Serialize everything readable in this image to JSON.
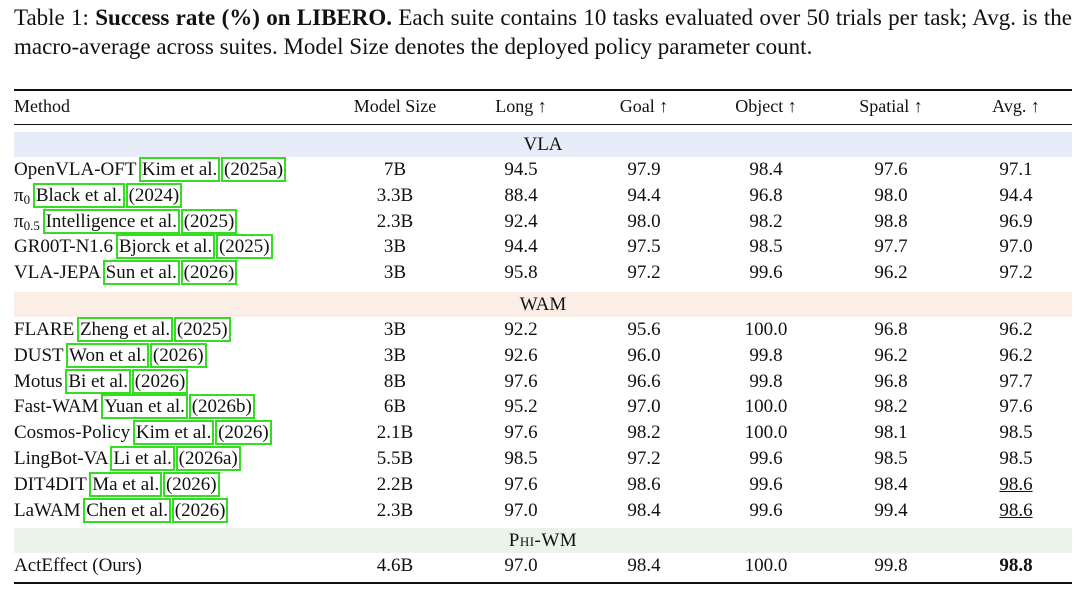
{
  "caption": {
    "label": "Table 1:",
    "title": "Success rate (%) on LIBERO.",
    "text": "Each suite contains 10 tasks evaluated over 50 trials per task; Avg. is the macro-average across suites. Model Size denotes the deployed policy parameter count."
  },
  "columns": [
    "Method",
    "Model Size",
    "Long ↑",
    "Goal ↑",
    "Object ↑",
    "Spatial ↑",
    "Avg. ↑"
  ],
  "groups": [
    {
      "name": "VLA",
      "band_color": "#e6edf8",
      "rows": [
        {
          "method": "OpenVLA-OFT",
          "sub": "",
          "cite_author": "Kim et al.",
          "cite_year": "(2025a)",
          "size": "7B",
          "long": "94.5",
          "goal": "97.9",
          "object": "98.4",
          "spatial": "97.6",
          "avg": "97.1"
        },
        {
          "method": "π",
          "sub": "0",
          "cite_author": "Black et al.",
          "cite_year": "(2024)",
          "size": "3.3B",
          "long": "88.4",
          "goal": "94.4",
          "object": "96.8",
          "spatial": "98.0",
          "avg": "94.4"
        },
        {
          "method": "π",
          "sub": "0.5",
          "cite_author": "Intelligence et al.",
          "cite_year": "(2025)",
          "size": "2.3B",
          "long": "92.4",
          "goal": "98.0",
          "object": "98.2",
          "spatial": "98.8",
          "avg": "96.9"
        },
        {
          "method": "GR00T-N1.6",
          "sub": "",
          "cite_author": "Bjorck et al.",
          "cite_year": "(2025)",
          "size": "3B",
          "long": "94.4",
          "goal": "97.5",
          "object": "98.5",
          "spatial": "97.7",
          "avg": "97.0"
        },
        {
          "method": "VLA-JEPA",
          "sub": "",
          "cite_author": "Sun et al.",
          "cite_year": "(2026)",
          "size": "3B",
          "long": "95.8",
          "goal": "97.2",
          "object": "99.6",
          "spatial": "96.2",
          "avg": "97.2"
        }
      ]
    },
    {
      "name": "WAM",
      "band_color": "#fbeee6",
      "rows": [
        {
          "method": "FLARE",
          "sub": "",
          "cite_author": "Zheng et al.",
          "cite_year": "(2025)",
          "size": "3B",
          "long": "92.2",
          "goal": "95.6",
          "object": "100.0",
          "spatial": "96.8",
          "avg": "96.2"
        },
        {
          "method": "DUST",
          "sub": "",
          "cite_author": "Won et al.",
          "cite_year": "(2026)",
          "size": "3B",
          "long": "92.6",
          "goal": "96.0",
          "object": "99.8",
          "spatial": "96.2",
          "avg": "96.2"
        },
        {
          "method": "Motus",
          "sub": "",
          "cite_author": "Bi et al.",
          "cite_year": "(2026)",
          "size": "8B",
          "long": "97.6",
          "goal": "96.6",
          "object": "99.8",
          "spatial": "96.8",
          "avg": "97.7"
        },
        {
          "method": "Fast-WAM",
          "sub": "",
          "cite_author": "Yuan et al.",
          "cite_year": "(2026b)",
          "size": "6B",
          "long": "95.2",
          "goal": "97.0",
          "object": "100.0",
          "spatial": "98.2",
          "avg": "97.6"
        },
        {
          "method": "Cosmos-Policy",
          "sub": "",
          "cite_author": "Kim et al.",
          "cite_year": "(2026)",
          "size": "2.1B",
          "long": "97.6",
          "goal": "98.2",
          "object": "100.0",
          "spatial": "98.1",
          "avg": "98.5"
        },
        {
          "method": "LingBot-VA",
          "sub": "",
          "cite_author": "Li et al.",
          "cite_year": "(2026a)",
          "size": "5.5B",
          "long": "98.5",
          "goal": "97.2",
          "object": "99.6",
          "spatial": "98.5",
          "avg": "98.5"
        },
        {
          "method": "DIT4DIT",
          "sub": "",
          "cite_author": "Ma et al.",
          "cite_year": "(2026)",
          "size": "2.2B",
          "long": "97.6",
          "goal": "98.6",
          "object": "99.6",
          "spatial": "98.4",
          "avg": "98.6",
          "avg_style": "underline"
        },
        {
          "method": "LaWAM",
          "sub": "",
          "cite_author": "Chen et al.",
          "cite_year": "(2026)",
          "size": "2.3B",
          "long": "97.0",
          "goal": "98.4",
          "object": "99.6",
          "spatial": "99.4",
          "avg": "98.6",
          "avg_style": "underline"
        }
      ]
    },
    {
      "name": "Phi-WM",
      "band_color": "#eaf4ea",
      "rows": [
        {
          "method": "ActEffect (Ours)",
          "sub": "",
          "cite_author": "",
          "cite_year": "",
          "size": "4.6B",
          "long": "97.0",
          "goal": "98.4",
          "object": "100.0",
          "spatial": "99.8",
          "avg": "98.8",
          "avg_style": "bold"
        }
      ]
    }
  ]
}
